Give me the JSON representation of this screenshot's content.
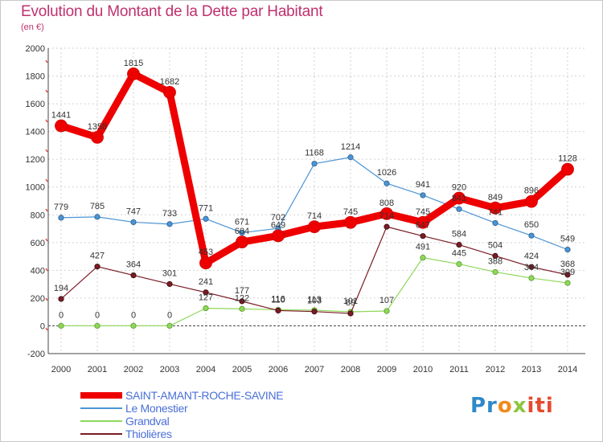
{
  "chart_data": {
    "type": "line",
    "title": "Evolution du Montant de la Dette par Habitant",
    "unit": "(en €)",
    "x": [
      "2000",
      "2001",
      "2002",
      "2003",
      "2004",
      "2005",
      "2006",
      "2007",
      "2008",
      "2009",
      "2010",
      "2011",
      "2012",
      "2013",
      "2014"
    ],
    "ylim": [
      -200,
      2000
    ],
    "yticks": [
      -200,
      0,
      200,
      400,
      600,
      800,
      1000,
      1200,
      1400,
      1600,
      1800,
      2000
    ],
    "grid": true,
    "legend_placement": "bottom-left",
    "series": [
      {
        "name": "SAINT-AMANT-ROCHE-SAVINE",
        "color": "#ee0000",
        "values": [
          1441,
          1358,
          1815,
          1682,
          453,
          604,
          649,
          714,
          745,
          808,
          745,
          920,
          849,
          896,
          1128
        ],
        "labels": [
          "1441",
          "1358",
          "1815",
          "1682",
          "453",
          "604",
          "649",
          "714",
          "745",
          "808",
          "745",
          "920",
          "849",
          "896",
          "1128"
        ]
      },
      {
        "name": "Le Monestier",
        "color": "#4b94d4",
        "values": [
          779,
          785,
          747,
          733,
          771,
          671,
          702,
          1168,
          1214,
          1026,
          941,
          841,
          741,
          650,
          549
        ],
        "labels": [
          "779",
          "785",
          "747",
          "733",
          "771",
          "671",
          "702",
          "1168",
          "1214",
          "1026",
          "941",
          "841",
          "741",
          "650",
          "549"
        ]
      },
      {
        "name": "Grandval",
        "color": "#8fd85a",
        "values": [
          0,
          0,
          0,
          0,
          127,
          122,
          116,
          113,
          101,
          107,
          491,
          445,
          388,
          344,
          309
        ],
        "labels": [
          "0",
          "0",
          "0",
          "0",
          "127",
          "122",
          "116",
          "113",
          "101",
          "107",
          "491",
          "445",
          "388",
          "344",
          "309"
        ]
      },
      {
        "name": "Thiolières",
        "color": "#7a1c24",
        "values": [
          194,
          427,
          364,
          301,
          241,
          177,
          110,
          103,
          89,
          714,
          647,
          584,
          504,
          424,
          368
        ],
        "labels": [
          "194",
          "427",
          "364",
          "301",
          "241",
          "177",
          "110",
          "103",
          "89",
          "714",
          "647",
          "584",
          "504",
          "424",
          "368"
        ]
      }
    ]
  },
  "logo": {
    "parts": [
      "Pr",
      "o",
      "x",
      "iti"
    ]
  }
}
